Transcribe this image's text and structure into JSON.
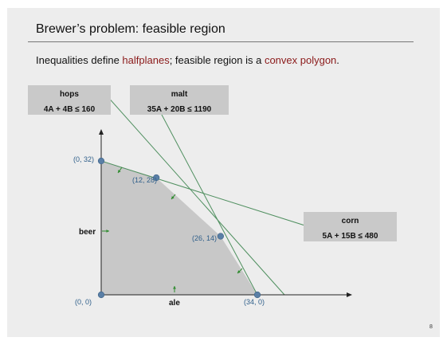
{
  "title": "Brewer’s problem:  feasible region",
  "subtitle": {
    "p1": "Inequalities define ",
    "p2": "halfplanes",
    "p3": "; feasible region is a ",
    "p4": "convex polygon",
    "p5": "."
  },
  "constraints": [
    {
      "name": "hops",
      "equation": "4A + 4B ≤ 160"
    },
    {
      "name": "malt",
      "equation": "35A + 20B ≤ 1190"
    },
    {
      "name": "corn",
      "equation": "5A + 15B ≤ 480"
    }
  ],
  "chart_data": {
    "type": "scatter",
    "xlabel": "ale",
    "ylabel": "beer",
    "vertices": [
      {
        "label": "(0, 0)",
        "x": 0,
        "y": 0
      },
      {
        "label": "(0, 32)",
        "x": 0,
        "y": 32
      },
      {
        "label": "(12, 28)",
        "x": 12,
        "y": 28
      },
      {
        "label": "(26, 14)",
        "x": 26,
        "y": 14
      },
      {
        "label": "(34, 0)",
        "x": 34,
        "y": 0
      }
    ],
    "colors": {
      "region": "#c8c8c8",
      "lines": "#4f8f5f",
      "points": "#5a7fa6",
      "arrows": "#2e8b2e"
    }
  },
  "page_number": "8"
}
